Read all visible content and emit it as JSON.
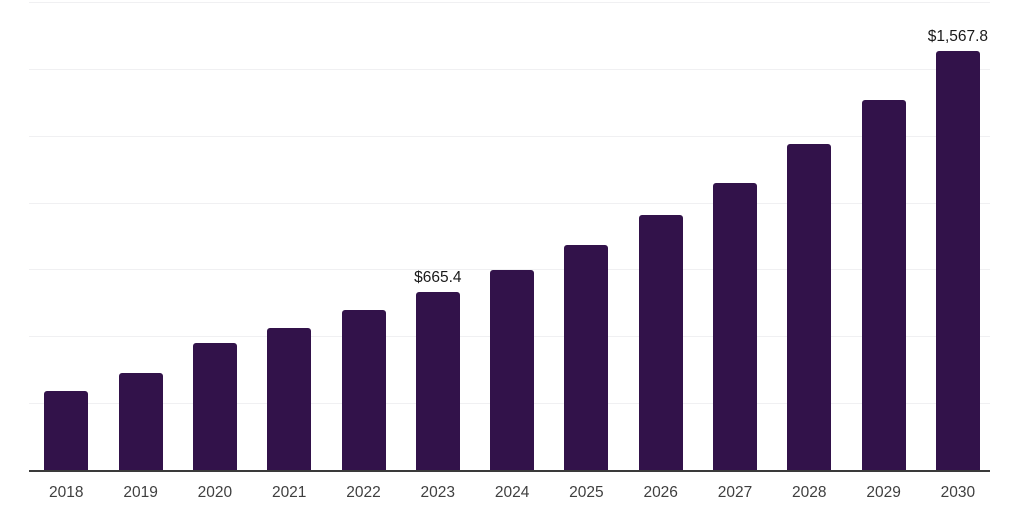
{
  "chart": {
    "background_color": "#ffffff",
    "bar_color": "#32124a",
    "axis_color": "#3a3a3a",
    "gridline_color": "#f0f0f2",
    "tick_label_color": "#3f3f3f",
    "annotation_color": "#1a1a1a"
  },
  "chart_data": {
    "type": "bar",
    "title": "",
    "xlabel": "",
    "ylabel": "",
    "categories": [
      "2018",
      "2019",
      "2020",
      "2021",
      "2022",
      "2023",
      "2024",
      "2025",
      "2026",
      "2027",
      "2028",
      "2029",
      "2030"
    ],
    "values": [
      295,
      362,
      475,
      531,
      597,
      665.4,
      748,
      841,
      953,
      1073,
      1218,
      1384,
      1567.8
    ],
    "annotations": [
      {
        "category": "2023",
        "label": "$665.4"
      },
      {
        "category": "2030",
        "label": "$1,567.8"
      }
    ],
    "ylim": [
      0,
      1750
    ],
    "grid": true,
    "gridline_step": 250,
    "y_axis_labels_visible": false,
    "legend": "none"
  }
}
